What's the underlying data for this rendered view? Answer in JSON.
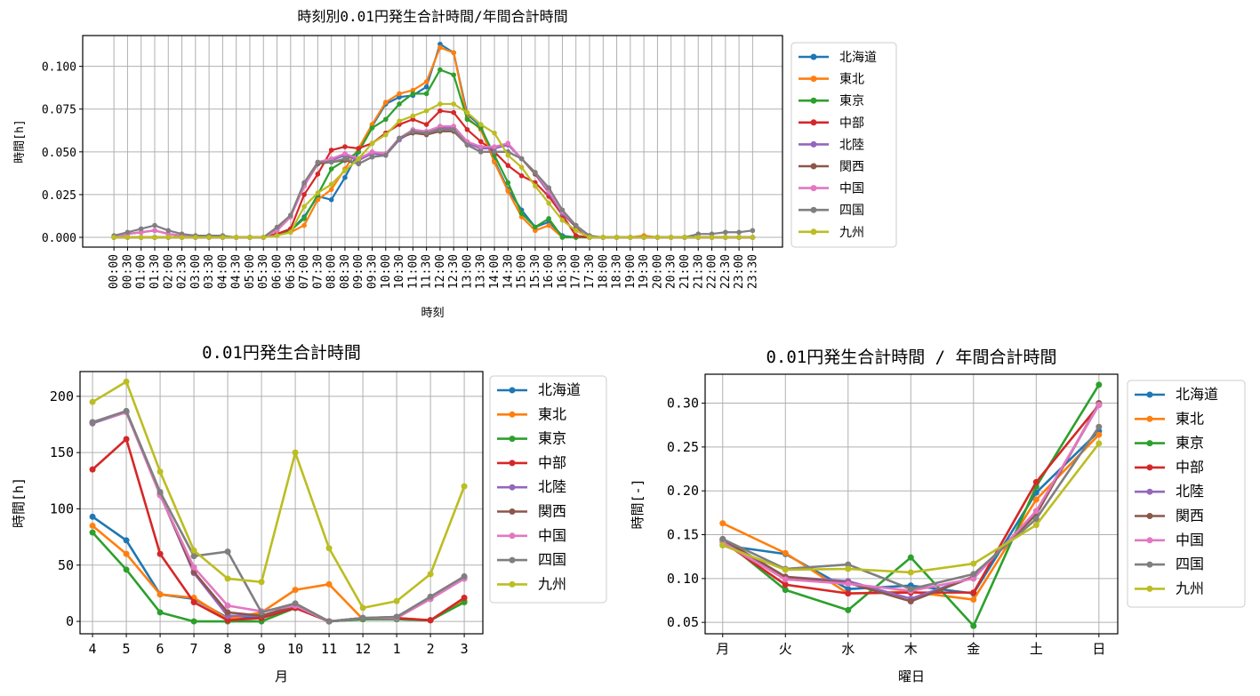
{
  "colors": [
    "#1f77b4",
    "#ff7f0e",
    "#2ca02c",
    "#d62728",
    "#9467bd",
    "#8c564b",
    "#e377c2",
    "#7f7f7f",
    "#bcbd22"
  ],
  "chart_data": [
    {
      "type": "line",
      "title": "時刻別0.01円発生合計時間/年間合計時間",
      "xlabel": "時刻",
      "ylabel": "時間[h]",
      "ylim": [
        -0.0057,
        0.118
      ],
      "yticks": [
        0,
        0.025,
        0.05,
        0.075,
        0.1
      ],
      "yticklabels": [
        "0.000",
        "0.025",
        "0.050",
        "0.075",
        "0.100"
      ],
      "grid": true,
      "legend": "outside-right",
      "categories": [
        "00:00",
        "00:30",
        "01:00",
        "01:30",
        "02:00",
        "02:30",
        "03:00",
        "03:30",
        "04:00",
        "04:30",
        "05:00",
        "05:30",
        "06:00",
        "06:30",
        "07:00",
        "07:30",
        "08:00",
        "08:30",
        "09:00",
        "09:30",
        "10:00",
        "10:30",
        "11:00",
        "11:30",
        "12:00",
        "12:30",
        "13:00",
        "13:30",
        "14:00",
        "14:30",
        "15:00",
        "15:30",
        "16:00",
        "16:30",
        "17:00",
        "17:30",
        "18:00",
        "18:30",
        "19:00",
        "19:30",
        "20:00",
        "20:30",
        "21:00",
        "21:30",
        "22:00",
        "22:30",
        "23:00",
        "23:30"
      ],
      "series": [
        {
          "name": "北海道",
          "values": [
            0,
            0,
            0,
            0,
            0,
            0,
            0,
            0,
            0,
            0,
            0,
            0,
            0.002,
            0.004,
            0.012,
            0.024,
            0.022,
            0.035,
            0.05,
            0.065,
            0.078,
            0.082,
            0.083,
            0.088,
            0.113,
            0.108,
            0.072,
            0.065,
            0.045,
            0.028,
            0.016,
            0.006,
            0.009,
            0.001,
            0,
            0,
            0,
            0,
            0,
            0,
            0,
            0,
            0,
            0,
            0,
            0,
            0,
            0
          ]
        },
        {
          "name": "東北",
          "values": [
            0,
            0,
            0,
            0,
            0,
            0,
            0,
            0,
            0,
            0,
            0,
            0,
            0.002,
            0.003,
            0.007,
            0.022,
            0.028,
            0.04,
            0.052,
            0.066,
            0.079,
            0.084,
            0.086,
            0.091,
            0.111,
            0.108,
            0.07,
            0.063,
            0.044,
            0.027,
            0.012,
            0.004,
            0.007,
            0,
            0,
            0,
            0,
            0,
            0,
            0.001,
            0,
            0,
            0,
            0,
            0,
            0,
            0,
            0
          ]
        },
        {
          "name": "東京",
          "values": [
            0,
            0,
            0,
            0,
            0,
            0,
            0,
            0,
            0,
            0,
            0,
            0,
            0.002,
            0.004,
            0.011,
            0.025,
            0.04,
            0.045,
            0.05,
            0.064,
            0.069,
            0.078,
            0.084,
            0.084,
            0.098,
            0.095,
            0.069,
            0.064,
            0.048,
            0.032,
            0.014,
            0.006,
            0.011,
            0,
            0,
            0,
            0,
            0,
            0,
            0,
            0,
            0,
            0,
            0,
            0,
            0,
            0,
            0
          ]
        },
        {
          "name": "中部",
          "values": [
            0,
            0,
            0,
            0,
            0,
            0,
            0,
            0,
            0,
            0,
            0,
            0,
            0.002,
            0.005,
            0.025,
            0.037,
            0.051,
            0.053,
            0.052,
            0.055,
            0.061,
            0.066,
            0.069,
            0.066,
            0.074,
            0.073,
            0.063,
            0.056,
            0.05,
            0.042,
            0.036,
            0.032,
            0.024,
            0.013,
            0.001,
            0,
            0,
            0,
            0,
            0,
            0,
            0,
            0,
            0,
            0,
            0,
            0,
            0
          ]
        },
        {
          "name": "北陸",
          "values": [
            0,
            0.002,
            0.003,
            0.004,
            0.002,
            0.001,
            0,
            0,
            0,
            0,
            0,
            0,
            0.004,
            0.012,
            0.03,
            0.043,
            0.045,
            0.048,
            0.045,
            0.049,
            0.048,
            0.057,
            0.062,
            0.061,
            0.064,
            0.064,
            0.055,
            0.052,
            0.052,
            0.054,
            0.046,
            0.037,
            0.026,
            0.014,
            0.006,
            0,
            0,
            0,
            0,
            0,
            0,
            0,
            0,
            0,
            0,
            0,
            0,
            0
          ]
        },
        {
          "name": "関西",
          "values": [
            0,
            0.002,
            0.003,
            0.004,
            0.002,
            0.001,
            0,
            0,
            0,
            0,
            0,
            0,
            0.005,
            0.012,
            0.031,
            0.043,
            0.044,
            0.045,
            0.043,
            0.047,
            0.048,
            0.058,
            0.061,
            0.06,
            0.062,
            0.062,
            0.054,
            0.05,
            0.05,
            0.05,
            0.046,
            0.037,
            0.028,
            0.015,
            0.006,
            0,
            0,
            0,
            0,
            0,
            0,
            0,
            0,
            0,
            0,
            0,
            0,
            0
          ]
        },
        {
          "name": "中国",
          "values": [
            0,
            0.002,
            0.003,
            0.004,
            0.002,
            0.001,
            0,
            0,
            0,
            0,
            0,
            0,
            0.004,
            0.012,
            0.03,
            0.044,
            0.046,
            0.049,
            0.046,
            0.05,
            0.049,
            0.058,
            0.063,
            0.062,
            0.065,
            0.065,
            0.056,
            0.053,
            0.053,
            0.055,
            0.046,
            0.038,
            0.027,
            0.015,
            0.007,
            0,
            0,
            0,
            0,
            0,
            0,
            0,
            0,
            0,
            0,
            0,
            0,
            0
          ]
        },
        {
          "name": "四国",
          "values": [
            0.001,
            0.003,
            0.005,
            0.007,
            0.004,
            0.002,
            0.001,
            0.001,
            0.001,
            0,
            0,
            0,
            0.006,
            0.013,
            0.032,
            0.044,
            0.044,
            0.046,
            0.043,
            0.047,
            0.048,
            0.058,
            0.062,
            0.061,
            0.063,
            0.063,
            0.054,
            0.05,
            0.05,
            0.05,
            0.046,
            0.038,
            0.029,
            0.016,
            0.007,
            0.001,
            0,
            0,
            0,
            0,
            0,
            0,
            0,
            0.002,
            0.002,
            0.003,
            0.003,
            0.004
          ]
        },
        {
          "name": "九州",
          "values": [
            0,
            0,
            0,
            0,
            0,
            0,
            0,
            0,
            0,
            0,
            0,
            0,
            0.001,
            0.003,
            0.018,
            0.026,
            0.031,
            0.039,
            0.046,
            0.055,
            0.06,
            0.068,
            0.071,
            0.074,
            0.078,
            0.078,
            0.073,
            0.066,
            0.061,
            0.048,
            0.041,
            0.03,
            0.02,
            0.01,
            0.004,
            0,
            0,
            0,
            0,
            0,
            0,
            0,
            0,
            0,
            0,
            0,
            0,
            0
          ]
        }
      ]
    },
    {
      "type": "line",
      "title": "0.01円発生合計時間",
      "xlabel": "月",
      "ylabel": "時間[h]",
      "ylim": [
        -11,
        222
      ],
      "yticks": [
        0,
        50,
        100,
        150,
        200
      ],
      "yticklabels": [
        "0",
        "50",
        "100",
        "150",
        "200"
      ],
      "grid": true,
      "legend": "outside-right",
      "categories": [
        "4",
        "5",
        "6",
        "7",
        "8",
        "9",
        "10",
        "11",
        "12",
        "1",
        "2",
        "3"
      ],
      "series": [
        {
          "name": "北海道",
          "values": [
            93,
            72,
            24,
            20,
            3,
            4,
            12,
            0,
            2,
            2,
            1,
            18
          ]
        },
        {
          "name": "東北",
          "values": [
            85,
            60,
            24,
            21,
            2,
            8,
            28,
            33,
            2,
            3,
            1,
            18
          ]
        },
        {
          "name": "東京",
          "values": [
            79,
            46,
            8,
            0,
            0,
            0,
            12,
            0,
            2,
            2,
            1,
            17
          ]
        },
        {
          "name": "中部",
          "values": [
            135,
            162,
            60,
            17,
            1,
            3,
            12,
            0,
            3,
            3,
            1,
            21
          ]
        },
        {
          "name": "北陸",
          "values": [
            176,
            186,
            113,
            43,
            5,
            5,
            14,
            0,
            3,
            3,
            20,
            38
          ]
        },
        {
          "name": "関西",
          "values": [
            177,
            186,
            113,
            44,
            8,
            5,
            14,
            0,
            3,
            4,
            21,
            39
          ]
        },
        {
          "name": "中国",
          "values": [
            177,
            186,
            112,
            48,
            14,
            9,
            14,
            0,
            3,
            3,
            20,
            38
          ]
        },
        {
          "name": "四国",
          "values": [
            177,
            187,
            115,
            58,
            62,
            8,
            16,
            0,
            3,
            4,
            22,
            40
          ]
        },
        {
          "name": "九州",
          "values": [
            195,
            213,
            133,
            63,
            38,
            35,
            150,
            65,
            12,
            18,
            42,
            120
          ]
        }
      ]
    },
    {
      "type": "line",
      "title": "0.01円発生合計時間 / 年間合計時間",
      "xlabel": "曜日",
      "ylabel": "時間[-]",
      "ylim": [
        0.037,
        0.333
      ],
      "yticks": [
        0.05,
        0.1,
        0.15,
        0.2,
        0.25,
        0.3
      ],
      "yticklabels": [
        "0.05",
        "0.10",
        "0.15",
        "0.20",
        "0.25",
        "0.30"
      ],
      "grid": true,
      "legend": "outside-right",
      "categories": [
        "月",
        "火",
        "水",
        "木",
        "金",
        "土",
        "日"
      ],
      "series": [
        {
          "name": "北海道",
          "values": [
            0.138,
            0.128,
            0.088,
            0.092,
            0.083,
            0.198,
            0.268
          ]
        },
        {
          "name": "東北",
          "values": [
            0.163,
            0.129,
            0.083,
            0.085,
            0.076,
            0.19,
            0.264
          ]
        },
        {
          "name": "東京",
          "values": [
            0.145,
            0.087,
            0.064,
            0.124,
            0.046,
            0.205,
            0.321
          ]
        },
        {
          "name": "中部",
          "values": [
            0.142,
            0.093,
            0.083,
            0.084,
            0.084,
            0.21,
            0.298
          ]
        },
        {
          "name": "北陸",
          "values": [
            0.144,
            0.102,
            0.097,
            0.077,
            0.102,
            0.175,
            0.298
          ]
        },
        {
          "name": "関西",
          "values": [
            0.145,
            0.102,
            0.095,
            0.074,
            0.102,
            0.173,
            0.3
          ]
        },
        {
          "name": "中国",
          "values": [
            0.141,
            0.099,
            0.094,
            0.086,
            0.1,
            0.177,
            0.298
          ]
        },
        {
          "name": "四国",
          "values": [
            0.145,
            0.111,
            0.116,
            0.088,
            0.105,
            0.168,
            0.273
          ]
        },
        {
          "name": "九州",
          "values": [
            0.138,
            0.11,
            0.111,
            0.107,
            0.117,
            0.161,
            0.254
          ]
        }
      ]
    }
  ]
}
